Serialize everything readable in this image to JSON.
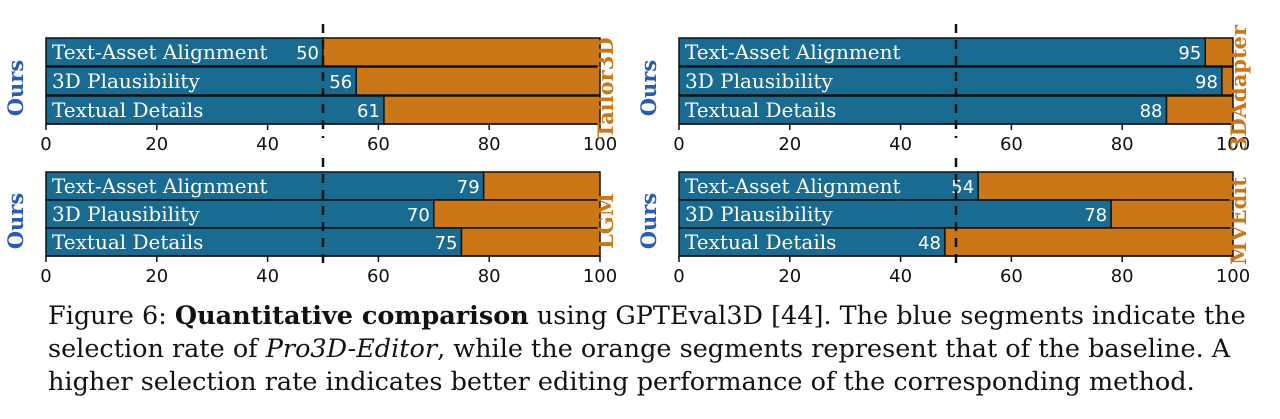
{
  "colors": {
    "ours": "#1a6b91",
    "baseline": "#cc7717",
    "ours_text": "#2a5db0",
    "baseline_text": "#cc7717",
    "label_text": "#ffffff",
    "border": "#111111"
  },
  "chart_data": [
    {
      "type": "bar",
      "orientation": "horizontal-stacked",
      "left_label": "Ours",
      "right_label": "Tailor3D",
      "categories": [
        "Text-Asset Alignment",
        "3D Plausibility",
        "Textual Details"
      ],
      "values": [
        50,
        56,
        61
      ],
      "xlim": [
        0,
        100
      ],
      "xticks": [
        0,
        20,
        40,
        60,
        80,
        100
      ],
      "reference_line": 50
    },
    {
      "type": "bar",
      "orientation": "horizontal-stacked",
      "left_label": "Ours",
      "right_label": "3DAdapter",
      "categories": [
        "Text-Asset Alignment",
        "3D Plausibility",
        "Textual Details"
      ],
      "values": [
        95,
        98,
        88
      ],
      "xlim": [
        0,
        100
      ],
      "xticks": [
        0,
        20,
        40,
        60,
        80,
        100
      ],
      "reference_line": 50
    },
    {
      "type": "bar",
      "orientation": "horizontal-stacked",
      "left_label": "Ours",
      "right_label": "LGM",
      "categories": [
        "Text-Asset Alignment",
        "3D Plausibility",
        "Textual Details"
      ],
      "values": [
        79,
        70,
        75
      ],
      "xlim": [
        0,
        100
      ],
      "xticks": [
        0,
        20,
        40,
        60,
        80,
        100
      ],
      "reference_line": 50
    },
    {
      "type": "bar",
      "orientation": "horizontal-stacked",
      "left_label": "Ours",
      "right_label": "MVEdit",
      "categories": [
        "Text-Asset Alignment",
        "3D Plausibility",
        "Textual Details"
      ],
      "values": [
        54,
        78,
        48
      ],
      "xlim": [
        0,
        100
      ],
      "xticks": [
        0,
        20,
        40,
        60,
        80,
        100
      ],
      "reference_line": 50
    }
  ],
  "caption": {
    "prefix": "Figure 6: ",
    "bold": "Quantitative comparison",
    "part1": " using GPTEval3D [44]. The blue segments indicate the selection rate of ",
    "italic": "Pro3D-Editor",
    "part2": ", while the orange segments represent that of the baseline. A higher selection rate indicates better editing performance of the corresponding method."
  }
}
